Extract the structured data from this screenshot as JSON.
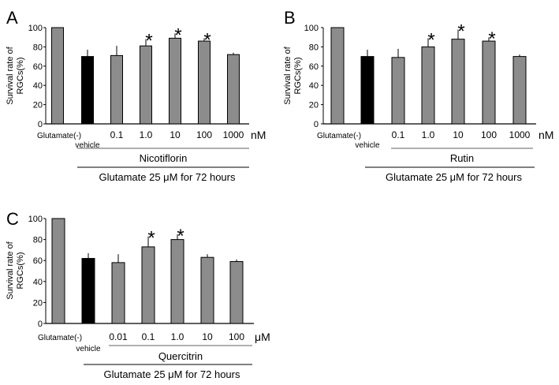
{
  "colors": {
    "bar_gray": "#8c8c8c",
    "bar_black": "#000000",
    "axis": "#000000",
    "bracket_inner": "#808080"
  },
  "chart_data": [
    {
      "type": "bar",
      "panel_label": "A",
      "ylabel_line1": "Survival rate of",
      "ylabel_line2": "RGCs(%)",
      "ylim": [
        0,
        100
      ],
      "yticks": [
        "0",
        "20",
        "40",
        "60",
        "80",
        "100"
      ],
      "categories": [
        "Glutamate(-)",
        "vehicle",
        "0.1",
        "1.0",
        "10",
        "100",
        "1000"
      ],
      "values": [
        100,
        70,
        71,
        81,
        89,
        86,
        72
      ],
      "errors": [
        0,
        7,
        10,
        7,
        5,
        3,
        2
      ],
      "significant": [
        false,
        false,
        false,
        true,
        true,
        true,
        false
      ],
      "bar_kind": [
        "gray",
        "black",
        "gray",
        "gray",
        "gray",
        "gray",
        "gray"
      ],
      "unit": "nM",
      "compound": "Nicotiflorin",
      "treatment": "Glutamate 25 μM for 72 hours",
      "asterisk": "*"
    },
    {
      "type": "bar",
      "panel_label": "B",
      "ylabel_line1": "Survival rate of",
      "ylabel_line2": "RGCs(%)",
      "ylim": [
        0,
        100
      ],
      "yticks": [
        "0",
        "20",
        "40",
        "60",
        "80",
        "100"
      ],
      "categories": [
        "Glutamate(-)",
        "vehicle",
        "0.1",
        "1.0",
        "10",
        "100",
        "1000"
      ],
      "values": [
        100,
        70,
        69,
        80,
        88,
        86,
        70
      ],
      "errors": [
        0,
        7,
        9,
        9,
        10,
        4,
        2
      ],
      "significant": [
        false,
        false,
        false,
        true,
        true,
        true,
        false
      ],
      "bar_kind": [
        "gray",
        "black",
        "gray",
        "gray",
        "gray",
        "gray",
        "gray"
      ],
      "unit": "nM",
      "compound": "Rutin",
      "treatment": "Glutamate 25 μM for 72 hours",
      "asterisk": "*"
    },
    {
      "type": "bar",
      "panel_label": "C",
      "ylabel_line1": "Survival rate of",
      "ylabel_line2": "RGCs(%)",
      "ylim": [
        0,
        100
      ],
      "yticks": [
        "0",
        "20",
        "40",
        "60",
        "80",
        "100"
      ],
      "categories": [
        "Glutamate(-)",
        "vehicle",
        "0.01",
        "0.1",
        "1.0",
        "10",
        "100"
      ],
      "values": [
        100,
        62,
        58,
        73,
        80,
        63,
        59
      ],
      "errors": [
        0,
        5,
        8,
        10,
        5,
        3,
        2
      ],
      "significant": [
        false,
        false,
        false,
        true,
        true,
        false,
        false
      ],
      "bar_kind": [
        "gray",
        "black",
        "gray",
        "gray",
        "gray",
        "gray",
        "gray"
      ],
      "unit": "μM",
      "compound": "Quercitrin",
      "treatment": "Glutamate 25 μM for 72 hours",
      "asterisk": "*"
    }
  ]
}
